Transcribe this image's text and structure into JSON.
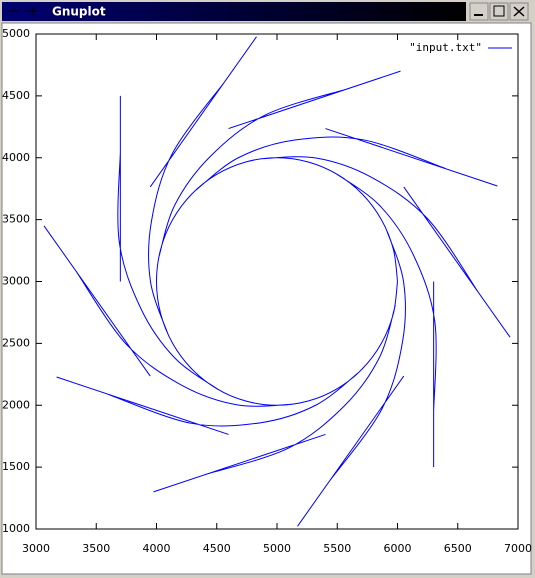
{
  "window": {
    "title": "Gnuplot"
  },
  "chart_data": {
    "type": "line",
    "x": [
      6000,
      5966,
      5866,
      5707,
      5500,
      5259,
      5000,
      4741,
      4500,
      4293,
      4134,
      4034,
      4000,
      4034,
      4134,
      4293,
      4500,
      4741,
      5000,
      5259,
      5500,
      5707,
      5866,
      5966,
      6000,
      null,
      3700,
      3700,
      null,
      3700,
      3690,
      3871,
      4151,
      4515,
      null,
      3948,
      3066,
      null,
      3331,
      3748,
      4216,
      4676,
      5122,
      null,
      4598,
      3171,
      null,
      3599,
      4284,
      4860,
      5325,
      5682,
      null,
      5402,
      3975,
      null,
      4403,
      5094,
      5558,
      5849,
      5982,
      null,
      6052,
      5170,
      null,
      5435,
      5868,
      6042,
      6050,
      5906,
      null,
      6300,
      6300,
      null,
      6300,
      6310,
      6129,
      5849,
      5485,
      null,
      6052,
      6934,
      null,
      6669,
      6252,
      5784,
      5324,
      4878,
      null,
      5402,
      6829,
      null,
      6401,
      5716,
      5140,
      4675,
      4318,
      null,
      4598,
      6025,
      null,
      5597,
      4906,
      4442,
      4151,
      4018,
      null,
      3948,
      4830,
      null,
      4565,
      4132,
      3958,
      3950,
      4094
    ],
    "series": [
      {
        "name": "\"input.txt\"",
        "color": "#0000ff",
        "values": [
          3000,
          3259,
          3500,
          3707,
          3866,
          3966,
          4000,
          3966,
          3866,
          3707,
          3500,
          3259,
          3000,
          2741,
          2500,
          2293,
          2134,
          2034,
          2000,
          2034,
          2134,
          2293,
          2500,
          2741,
          3000,
          null,
          3000,
          4500,
          null,
          4050,
          3327,
          2780,
          2383,
          2125,
          null,
          2236,
          3450,
          null,
          3085,
          2495,
          2158,
          2002,
          2007,
          null,
          1764,
          2228,
          null,
          2088,
          1855,
          1858,
          2002,
          2269,
          null,
          1764,
          1300,
          null,
          1440,
          1653,
          1994,
          2384,
          2809,
          null,
          2236,
          1022,
          null,
          1387,
          1965,
          2514,
          3000,
          3423,
          null,
          3000,
          1500,
          null,
          1950,
          2673,
          3220,
          3617,
          3875,
          null,
          3764,
          2550,
          null,
          2915,
          3505,
          3842,
          3998,
          3993,
          null,
          4236,
          3772,
          null,
          3912,
          4145,
          4142,
          3998,
          3731,
          null,
          4236,
          4700,
          null,
          4560,
          4347,
          4006,
          3616,
          3191,
          null,
          3764,
          4978,
          null,
          4613,
          4035,
          3486,
          3000,
          2577
        ]
      }
    ],
    "xlim": [
      3000,
      7000
    ],
    "xticks": [
      3000,
      3500,
      4000,
      4500,
      5000,
      5500,
      6000,
      6500,
      7000
    ],
    "ylim": [
      1000,
      5000
    ],
    "yticks": [
      1000,
      1500,
      2000,
      2500,
      3000,
      3500,
      4000,
      4500,
      5000
    ],
    "legend": "top-right"
  }
}
